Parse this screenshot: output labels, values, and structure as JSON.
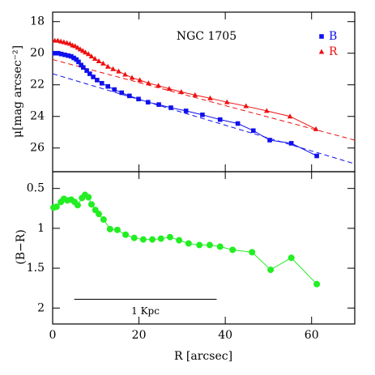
{
  "chart_data": [
    {
      "type": "scatter",
      "title": "NGC 1705",
      "ylabel": "μ[mag arcsec⁻²]",
      "xlim": [
        0,
        70
      ],
      "ylim": [
        27.5,
        17.4
      ],
      "yticks": [
        18,
        20,
        22,
        24,
        26
      ],
      "legend": "upper right",
      "series": [
        {
          "name": "B",
          "color": "#1010ee",
          "marker": "square",
          "x": [
            0.5,
            1.3,
            2,
            2.8,
            3.6,
            4.3,
            4.9,
            5.5,
            6,
            6.6,
            7.1,
            7.9,
            8.6,
            9.4,
            10.3,
            11.4,
            12.8,
            14.3,
            16,
            17.8,
            19.9,
            22.1,
            24.6,
            27.4,
            30.9,
            34.7,
            38.8,
            42.9,
            46.5,
            50.3,
            55.3,
            61.2
          ],
          "values": [
            20.0,
            20.0,
            20.05,
            20.1,
            20.15,
            20.2,
            20.3,
            20.4,
            20.55,
            20.75,
            20.9,
            21.1,
            21.3,
            21.5,
            21.7,
            21.9,
            22.1,
            22.3,
            22.5,
            22.7,
            22.9,
            23.1,
            23.25,
            23.45,
            23.65,
            23.9,
            24.2,
            24.45,
            24.9,
            25.5,
            25.7,
            26.5
          ]
        },
        {
          "name": "R",
          "color": "#ee1010",
          "marker": "triangle",
          "x": [
            0.5,
            1.2,
            1.9,
            2.6,
            3.3,
            4,
            4.6,
            5.2,
            5.8,
            6.4,
            7,
            7.6,
            8.3,
            9,
            9.8,
            10.7,
            11.7,
            12.8,
            14,
            15.3,
            16.8,
            18.4,
            20.2,
            22.2,
            24.5,
            27,
            29.8,
            33,
            36.5,
            40.4,
            44.8,
            49.6,
            55,
            61
          ],
          "values": [
            19.2,
            19.2,
            19.25,
            19.3,
            19.35,
            19.4,
            19.5,
            19.55,
            19.65,
            19.75,
            19.85,
            19.95,
            20.05,
            20.2,
            20.35,
            20.5,
            20.65,
            20.85,
            21.0,
            21.15,
            21.35,
            21.55,
            21.7,
            21.9,
            22.05,
            22.25,
            22.45,
            22.65,
            22.85,
            23.1,
            23.35,
            23.65,
            24.0,
            24.8
          ]
        }
      ],
      "fits": [
        {
          "color": "#1010ee",
          "x": [
            0,
            70
          ],
          "values": [
            21.3,
            27.0
          ]
        },
        {
          "color": "#ee1010",
          "x": [
            0,
            70
          ],
          "values": [
            20.4,
            25.5
          ]
        }
      ]
    },
    {
      "type": "scatter",
      "xlabel": "R [arcsec]",
      "ylabel": "(B−R)",
      "xlim": [
        0,
        70
      ],
      "xticks": [
        0,
        20,
        40,
        60
      ],
      "ylim": [
        2.2,
        0.29
      ],
      "yticks": [
        0.5,
        1,
        1.5,
        2
      ],
      "series": [
        {
          "color": "#22ee22",
          "marker": "circle",
          "x": [
            0.2,
            0.9,
            1.9,
            2.6,
            3.4,
            4.3,
            5.1,
            5.8,
            6.8,
            7.5,
            8.3,
            9.0,
            9.9,
            10.7,
            11.8,
            13.3,
            15.0,
            16.9,
            18.9,
            21.0,
            23.1,
            25.1,
            27.2,
            29.3,
            31.5,
            34.0,
            36.4,
            38.8,
            41.7,
            46.2,
            50.5,
            55.3,
            61.2
          ],
          "values": [
            0.74,
            0.73,
            0.67,
            0.63,
            0.65,
            0.64,
            0.67,
            0.71,
            0.62,
            0.58,
            0.61,
            0.7,
            0.77,
            0.82,
            0.89,
            1.01,
            1.02,
            1.08,
            1.12,
            1.14,
            1.14,
            1.13,
            1.11,
            1.15,
            1.19,
            1.21,
            1.21,
            1.23,
            1.27,
            1.3,
            1.52,
            1.37,
            1.7
          ]
        }
      ],
      "scale_bar": {
        "label": "1 Kpc",
        "x": [
          5,
          38
        ],
        "y": 1.89
      }
    }
  ]
}
